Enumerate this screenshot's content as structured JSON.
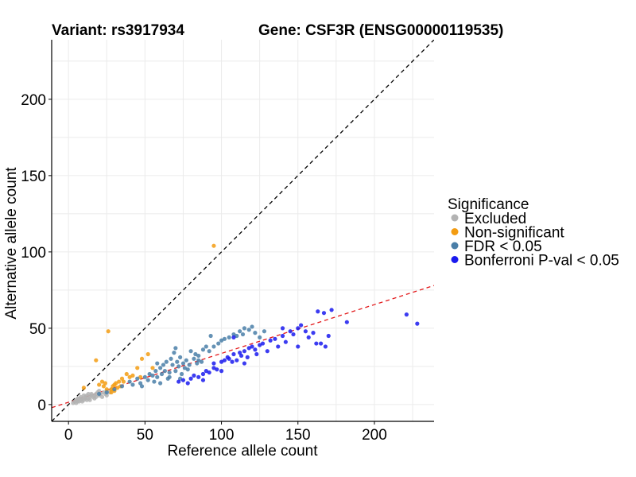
{
  "header": {
    "variant_label": "Variant: rs3917934",
    "gene_label": "Gene: CSF3R (ENSG00000119535)"
  },
  "chart_data": {
    "type": "scatter",
    "xlabel": "Reference allele count",
    "ylabel": "Alternative allele count",
    "xlim": [
      -11,
      239
    ],
    "ylim": [
      -11,
      239
    ],
    "x_ticks": [
      0,
      50,
      100,
      150,
      200
    ],
    "y_ticks": [
      0,
      50,
      100,
      150,
      200
    ],
    "grid": true,
    "legend": {
      "title": "Significance",
      "placement": "right",
      "entries": [
        {
          "label": "Excluded",
          "color": "#b3b3b3"
        },
        {
          "label": "Non-significant",
          "color": "#f39c12"
        },
        {
          "label": "FDR < 0.05",
          "color": "#4a7fa8"
        },
        {
          "label": "Bonferroni P-val < 0.05",
          "color": "#1a1aee"
        }
      ]
    },
    "reference_lines": [
      {
        "kind": "identity",
        "slope": 1,
        "intercept": 0,
        "color": "#000000",
        "dash": "dashed"
      },
      {
        "kind": "fit",
        "slope": 0.32,
        "intercept": 1.5,
        "color": "#e31a1c",
        "dash": "dashed"
      }
    ],
    "series": [
      {
        "name": "Excluded",
        "color": "#b3b3b3",
        "points": [
          [
            3,
            1
          ],
          [
            4,
            2
          ],
          [
            5,
            1
          ],
          [
            5,
            3
          ],
          [
            6,
            2
          ],
          [
            7,
            2
          ],
          [
            7,
            4
          ],
          [
            8,
            3
          ],
          [
            8,
            5
          ],
          [
            9,
            2
          ],
          [
            9,
            4
          ],
          [
            10,
            3
          ],
          [
            10,
            6
          ],
          [
            11,
            4
          ],
          [
            11,
            5
          ],
          [
            12,
            3
          ],
          [
            12,
            6
          ],
          [
            13,
            4
          ],
          [
            14,
            5
          ],
          [
            14,
            3
          ],
          [
            15,
            6
          ],
          [
            15,
            7
          ],
          [
            16,
            5
          ],
          [
            17,
            6
          ],
          [
            17,
            4
          ],
          [
            18,
            5
          ],
          [
            18,
            7
          ],
          [
            19,
            8
          ],
          [
            20,
            6
          ],
          [
            20,
            9
          ],
          [
            21,
            7
          ],
          [
            22,
            5
          ],
          [
            23,
            8
          ],
          [
            24,
            7
          ],
          [
            25,
            6
          ],
          [
            25,
            9
          ],
          [
            27,
            8
          ],
          [
            28,
            10
          ],
          [
            6,
            4
          ],
          [
            13,
            7
          ]
        ]
      },
      {
        "name": "Non-significant",
        "color": "#f39c12",
        "points": [
          [
            10,
            11
          ],
          [
            18,
            29
          ],
          [
            20,
            13
          ],
          [
            22,
            15
          ],
          [
            23,
            12
          ],
          [
            24,
            14
          ],
          [
            25,
            10
          ],
          [
            26,
            48
          ],
          [
            28,
            8
          ],
          [
            28,
            10
          ],
          [
            29,
            12
          ],
          [
            30,
            13
          ],
          [
            31,
            14
          ],
          [
            32,
            11
          ],
          [
            33,
            15
          ],
          [
            34,
            12
          ],
          [
            36,
            15
          ],
          [
            38,
            20
          ],
          [
            40,
            18
          ],
          [
            42,
            19
          ],
          [
            45,
            24
          ],
          [
            47,
            18
          ],
          [
            48,
            30
          ],
          [
            52,
            33
          ],
          [
            55,
            24
          ],
          [
            95,
            104
          ],
          [
            30,
            9
          ],
          [
            35,
            17
          ]
        ]
      },
      {
        "name": "FDR < 0.05",
        "color": "#4a7fa8",
        "points": [
          [
            20,
            7
          ],
          [
            25,
            8
          ],
          [
            30,
            10
          ],
          [
            35,
            12
          ],
          [
            40,
            15
          ],
          [
            42,
            13
          ],
          [
            45,
            17
          ],
          [
            47,
            14
          ],
          [
            48,
            12
          ],
          [
            50,
            18
          ],
          [
            52,
            16
          ],
          [
            53,
            20
          ],
          [
            55,
            19
          ],
          [
            57,
            22
          ],
          [
            58,
            18
          ],
          [
            60,
            24
          ],
          [
            61,
            20
          ],
          [
            62,
            26
          ],
          [
            63,
            22
          ],
          [
            64,
            28
          ],
          [
            65,
            17
          ],
          [
            66,
            21
          ],
          [
            67,
            30
          ],
          [
            68,
            26
          ],
          [
            69,
            34
          ],
          [
            70,
            22
          ],
          [
            71,
            28
          ],
          [
            72,
            25
          ],
          [
            73,
            31
          ],
          [
            74,
            20
          ],
          [
            75,
            27
          ],
          [
            76,
            24
          ],
          [
            77,
            29
          ],
          [
            78,
            23
          ],
          [
            79,
            26
          ],
          [
            80,
            35
          ],
          [
            82,
            30
          ],
          [
            83,
            33
          ],
          [
            84,
            27
          ],
          [
            85,
            32
          ],
          [
            87,
            28
          ],
          [
            88,
            36
          ],
          [
            90,
            38
          ],
          [
            92,
            35
          ],
          [
            93,
            45
          ],
          [
            95,
            38
          ],
          [
            98,
            40
          ],
          [
            100,
            42
          ],
          [
            102,
            43
          ],
          [
            105,
            44
          ],
          [
            108,
            46
          ],
          [
            110,
            45
          ],
          [
            112,
            48
          ],
          [
            114,
            46
          ],
          [
            115,
            50
          ],
          [
            118,
            49
          ],
          [
            120,
            51
          ],
          [
            122,
            47
          ],
          [
            125,
            44
          ],
          [
            128,
            48
          ],
          [
            56,
            15
          ],
          [
            66,
            18
          ],
          [
            60,
            14
          ],
          [
            73,
            17
          ],
          [
            85,
            29
          ],
          [
            70,
            37
          ],
          [
            58,
            27
          ]
        ]
      },
      {
        "name": "Bonferroni P-val < 0.05",
        "color": "#1a1aee",
        "points": [
          [
            72,
            15
          ],
          [
            75,
            16
          ],
          [
            78,
            14
          ],
          [
            80,
            17
          ],
          [
            82,
            19
          ],
          [
            85,
            18
          ],
          [
            88,
            20
          ],
          [
            90,
            22
          ],
          [
            92,
            21
          ],
          [
            95,
            24
          ],
          [
            97,
            23
          ],
          [
            100,
            28
          ],
          [
            102,
            29
          ],
          [
            104,
            31
          ],
          [
            105,
            30
          ],
          [
            107,
            28
          ],
          [
            108,
            33
          ],
          [
            110,
            29
          ],
          [
            112,
            34
          ],
          [
            113,
            32
          ],
          [
            115,
            35
          ],
          [
            117,
            31
          ],
          [
            118,
            37
          ],
          [
            120,
            38
          ],
          [
            122,
            36
          ],
          [
            123,
            33
          ],
          [
            125,
            39
          ],
          [
            127,
            40
          ],
          [
            130,
            35
          ],
          [
            132,
            42
          ],
          [
            135,
            43
          ],
          [
            137,
            38
          ],
          [
            140,
            45
          ],
          [
            142,
            41
          ],
          [
            145,
            48
          ],
          [
            147,
            46
          ],
          [
            150,
            50
          ],
          [
            152,
            52
          ],
          [
            155,
            48
          ],
          [
            157,
            44
          ],
          [
            160,
            47
          ],
          [
            162,
            40
          ],
          [
            163,
            61
          ],
          [
            165,
            40
          ],
          [
            167,
            60
          ],
          [
            168,
            38
          ],
          [
            170,
            45
          ],
          [
            172,
            62
          ],
          [
            182,
            54
          ],
          [
            221,
            59
          ],
          [
            228,
            53
          ],
          [
            108,
            44
          ],
          [
            95,
            27
          ],
          [
            88,
            16
          ],
          [
            140,
            50
          ],
          [
            150,
            38
          ],
          [
            115,
            27
          ],
          [
            100,
            22
          ]
        ]
      }
    ]
  }
}
